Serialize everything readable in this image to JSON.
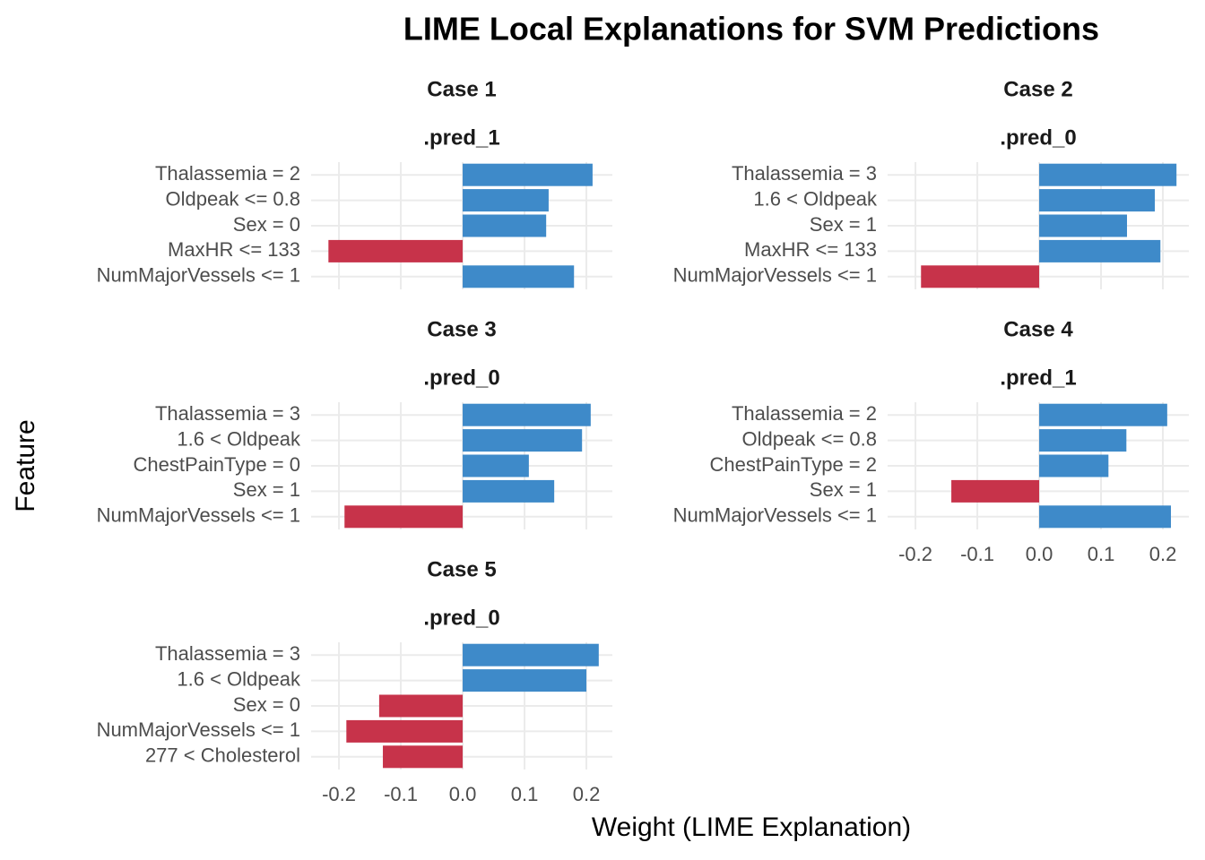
{
  "figure": {
    "title": "LIME Local Explanations for SVM Predictions",
    "xlabel": "Weight (LIME Explanation)",
    "ylabel": "Feature"
  },
  "chart_data": [
    {
      "type": "hbar",
      "title": "Case 1",
      "subtitle": ".pred_1",
      "categories": [
        "Thalassemia = 2",
        "Oldpeak <= 0.8",
        "Sex = 0",
        "MaxHR <= 133",
        "NumMajorVessels <= 1"
      ],
      "values": [
        0.21,
        0.139,
        0.135,
        -0.217,
        0.18
      ],
      "color": "#3e8ac9",
      "negative_color": "#c7334a",
      "xlim": [
        -0.245,
        0.242
      ],
      "xticks": [
        -0.2,
        -0.1,
        {
          "value": 0,
          "label": "0.0"
        },
        0.1,
        0.2
      ],
      "xtick_labels": false,
      "grid": true
    },
    {
      "type": "hbar",
      "title": "Case 2",
      "subtitle": ".pred_0",
      "categories": [
        "Thalassemia = 3",
        "1.6 < Oldpeak",
        "Sex = 1",
        "MaxHR <= 133",
        "NumMajorVessels <= 1"
      ],
      "values": [
        0.222,
        0.187,
        0.142,
        0.196,
        -0.191
      ],
      "color": "#3e8ac9",
      "negative_color": "#c7334a",
      "xlim": [
        -0.245,
        0.242
      ],
      "xticks": [
        -0.2,
        -0.1,
        {
          "value": 0,
          "label": "0.0"
        },
        0.1,
        0.2
      ],
      "xtick_labels": false,
      "grid": true
    },
    {
      "type": "hbar",
      "title": "Case 3",
      "subtitle": ".pred_0",
      "categories": [
        "Thalassemia = 3",
        "1.6 < Oldpeak",
        "ChestPainType = 0",
        "Sex = 1",
        "NumMajorVessels <= 1"
      ],
      "values": [
        0.207,
        0.193,
        0.107,
        0.148,
        -0.191
      ],
      "color": "#3e8ac9",
      "negative_color": "#c7334a",
      "xlim": [
        -0.245,
        0.242
      ],
      "xticks": [
        -0.2,
        -0.1,
        {
          "value": 0,
          "label": "0.0"
        },
        0.1,
        0.2
      ],
      "xtick_labels": false,
      "grid": true
    },
    {
      "type": "hbar",
      "title": "Case 4",
      "subtitle": ".pred_1",
      "categories": [
        "Thalassemia = 2",
        "Oldpeak <= 0.8",
        "ChestPainType = 2",
        "Sex = 1",
        "NumMajorVessels <= 1"
      ],
      "values": [
        0.207,
        0.141,
        0.112,
        -0.142,
        0.213
      ],
      "color": "#3e8ac9",
      "negative_color": "#c7334a",
      "xlim": [
        -0.245,
        0.242
      ],
      "xticks": [
        -0.2,
        -0.1,
        {
          "value": 0,
          "label": "0.0"
        },
        0.1,
        0.2
      ],
      "xtick_labels": true,
      "grid": true
    },
    {
      "type": "hbar",
      "title": "Case 5",
      "subtitle": ".pred_0",
      "categories": [
        "Thalassemia = 3",
        "1.6 < Oldpeak",
        "Sex = 0",
        "NumMajorVessels <= 1",
        "277 < Cholesterol"
      ],
      "values": [
        0.22,
        0.2,
        -0.135,
        -0.188,
        -0.129
      ],
      "color": "#3e8ac9",
      "negative_color": "#c7334a",
      "xlim": [
        -0.245,
        0.242
      ],
      "xticks": [
        -0.2,
        -0.1,
        {
          "value": 0,
          "label": "0.0"
        },
        0.1,
        0.2
      ],
      "xtick_labels": true,
      "grid": true
    }
  ]
}
